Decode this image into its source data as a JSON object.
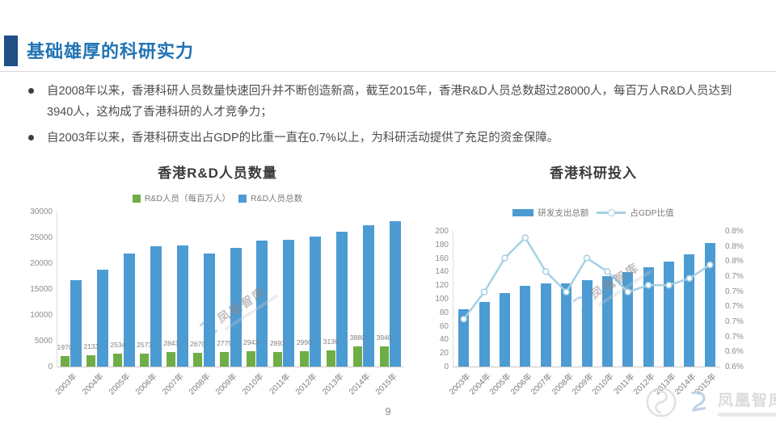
{
  "header": {
    "title": "基础雄厚的科研实力"
  },
  "bullets": [
    "自2008年以来，香港科研人员数量快速回升并不断创造新高，截至2015年，香港R&D人员总数超过28000人，每百万人R&D人员达到3940人，这构成了香港科研的人才竞争力；",
    "自2003年以来，香港科研支出占GDP的比重一直在0.7%以上，为科研活动提供了充足的资金保障。"
  ],
  "page_number": "9",
  "watermark": {
    "text": "凤凰智库"
  },
  "colors": {
    "accent_blue": "#2173B4",
    "header_bar": "#1E5087",
    "bar_blue": "#4D9BD3",
    "bar_green": "#6FAE46",
    "line_light_blue": "#A5D0E4",
    "axis_text": "#8C8C8C"
  },
  "chart_data": [
    {
      "type": "bar",
      "title": "香港R&D人员数量",
      "legend_position": "top",
      "grid": false,
      "categories": [
        "2003年",
        "2004年",
        "2005年",
        "2006年",
        "2007年",
        "2008年",
        "2009年",
        "2010年",
        "2011年",
        "2012年",
        "2013年",
        "2014年",
        "2015年"
      ],
      "series": [
        {
          "name": "R&D人员（每百万人）",
          "color_key": "bar_green",
          "values": [
            1970,
            2133,
            2534,
            2573,
            2843,
            2670,
            2775,
            2943,
            2893,
            2990,
            3136,
            3880,
            3940
          ],
          "data_labels": true
        },
        {
          "name": "R&D人员总数",
          "color_key": "bar_blue",
          "values": [
            16700,
            18800,
            21900,
            23300,
            23500,
            21900,
            23000,
            24400,
            24500,
            25200,
            26100,
            27300,
            28100
          ],
          "data_labels": false
        }
      ],
      "ylim": [
        0,
        30000
      ],
      "yticks": [
        0,
        5000,
        10000,
        15000,
        20000,
        25000,
        30000
      ]
    },
    {
      "type": "bar+line",
      "title": "香港科研投入",
      "legend_position": "top",
      "grid": false,
      "categories": [
        "2003年",
        "2004年",
        "2005年",
        "2006年",
        "2007年",
        "2008年",
        "2009年",
        "2010年",
        "2011年",
        "2012年",
        "2013年",
        "2014年",
        "2015年"
      ],
      "bar_series": {
        "name": "研发支出总额",
        "color_key": "bar_blue",
        "values": [
          85,
          95,
          108,
          119,
          123,
          123,
          127,
          133,
          139,
          147,
          155,
          165,
          182
        ]
      },
      "line_series": {
        "name": "占GDP比值",
        "color_key": "line_light_blue",
        "values_percent": [
          0.67,
          0.71,
          0.76,
          0.79,
          0.74,
          0.71,
          0.76,
          0.74,
          0.71,
          0.72,
          0.72,
          0.73,
          0.75
        ]
      },
      "ylim_left": [
        0,
        200
      ],
      "yticks_left": [
        0,
        20,
        40,
        60,
        80,
        100,
        120,
        140,
        160,
        180,
        200
      ],
      "ylim_right": [
        0.6,
        0.8
      ],
      "yticks_right": [
        "0.6%",
        "0.6%",
        "0.7%",
        "0.7%",
        "0.7%",
        "0.7%",
        "0.7%",
        "0.8%",
        "0.8%",
        "0.8%"
      ]
    }
  ]
}
